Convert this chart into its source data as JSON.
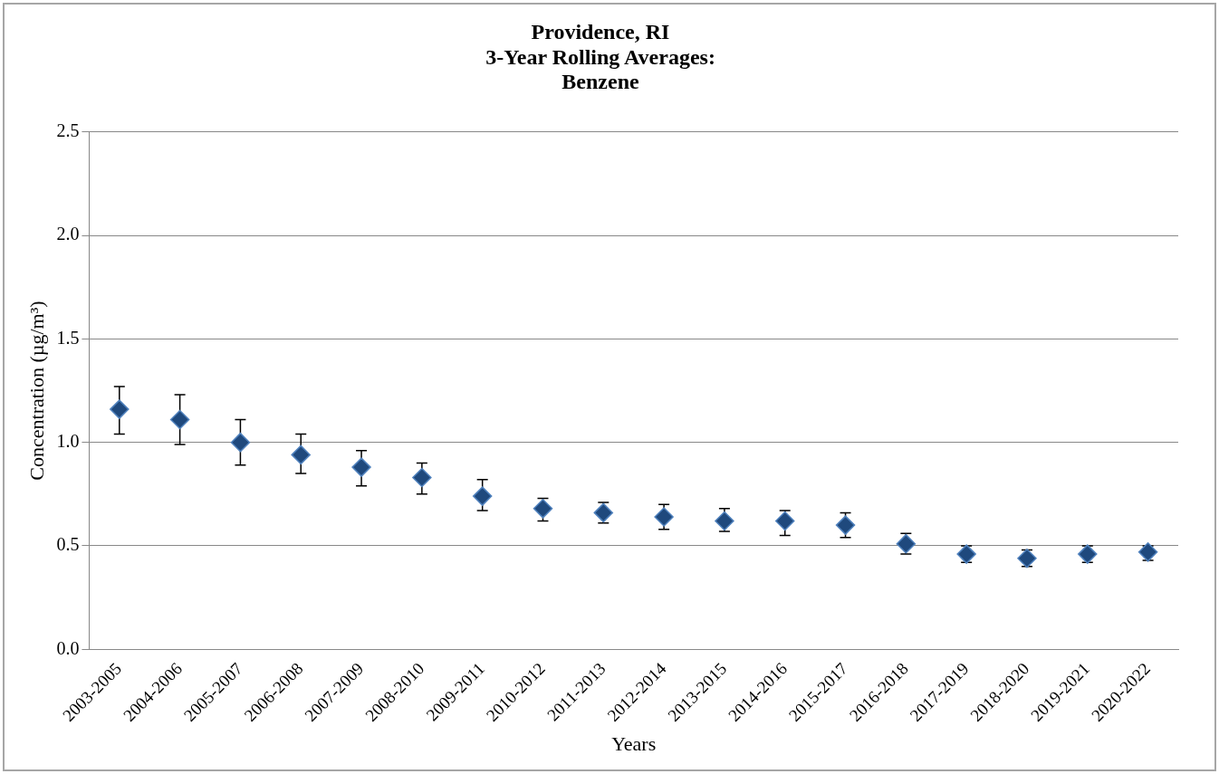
{
  "chart_data": {
    "type": "scatter",
    "title": "Providence, RI\n3-Year Rolling Averages:\nBenzene",
    "xlabel": "Years",
    "ylabel": "Concentration (µg/m³)",
    "categories": [
      "2003-2005",
      "2004-2006",
      "2005-2007",
      "2006-2008",
      "2007-2009",
      "2008-2010",
      "2009-2011",
      "2010-2012",
      "2011-2013",
      "2012-2014",
      "2013-2015",
      "2014-2016",
      "2015-2017",
      "2016-2018",
      "2017-2019",
      "2018-2020",
      "2019-2021",
      "2020-2022"
    ],
    "series": [
      {
        "color": "#1f497d",
        "values": [
          1.16,
          1.11,
          1.0,
          0.94,
          0.88,
          0.83,
          0.74,
          0.68,
          0.66,
          0.64,
          0.62,
          0.62,
          0.6,
          0.51,
          0.46,
          0.44,
          0.46,
          0.47
        ],
        "errors": [
          [
            1.04,
            1.27
          ],
          [
            0.99,
            1.23
          ],
          [
            0.89,
            1.11
          ],
          [
            0.85,
            1.04
          ],
          [
            0.79,
            0.96
          ],
          [
            0.75,
            0.9
          ],
          [
            0.67,
            0.82
          ],
          [
            0.62,
            0.73
          ],
          [
            0.61,
            0.71
          ],
          [
            0.58,
            0.7
          ],
          [
            0.57,
            0.68
          ],
          [
            0.55,
            0.67
          ],
          [
            0.54,
            0.66
          ],
          [
            0.46,
            0.56
          ],
          [
            0.42,
            0.5
          ],
          [
            0.4,
            0.48
          ],
          [
            0.42,
            0.5
          ],
          [
            0.43,
            0.5
          ]
        ]
      }
    ],
    "ylim": [
      0,
      2.5
    ],
    "yticks": [
      {
        "value": 0,
        "label": "0.0"
      },
      {
        "value": 0.5,
        "label": "0.5"
      },
      {
        "value": 1,
        "label": "1.0"
      },
      {
        "value": 1.5,
        "label": "1.5"
      },
      {
        "value": 2,
        "label": "2.0"
      },
      {
        "value": 2.5,
        "label": "2.5"
      }
    ],
    "grid": "y",
    "legend": false,
    "marker": "diamond"
  }
}
